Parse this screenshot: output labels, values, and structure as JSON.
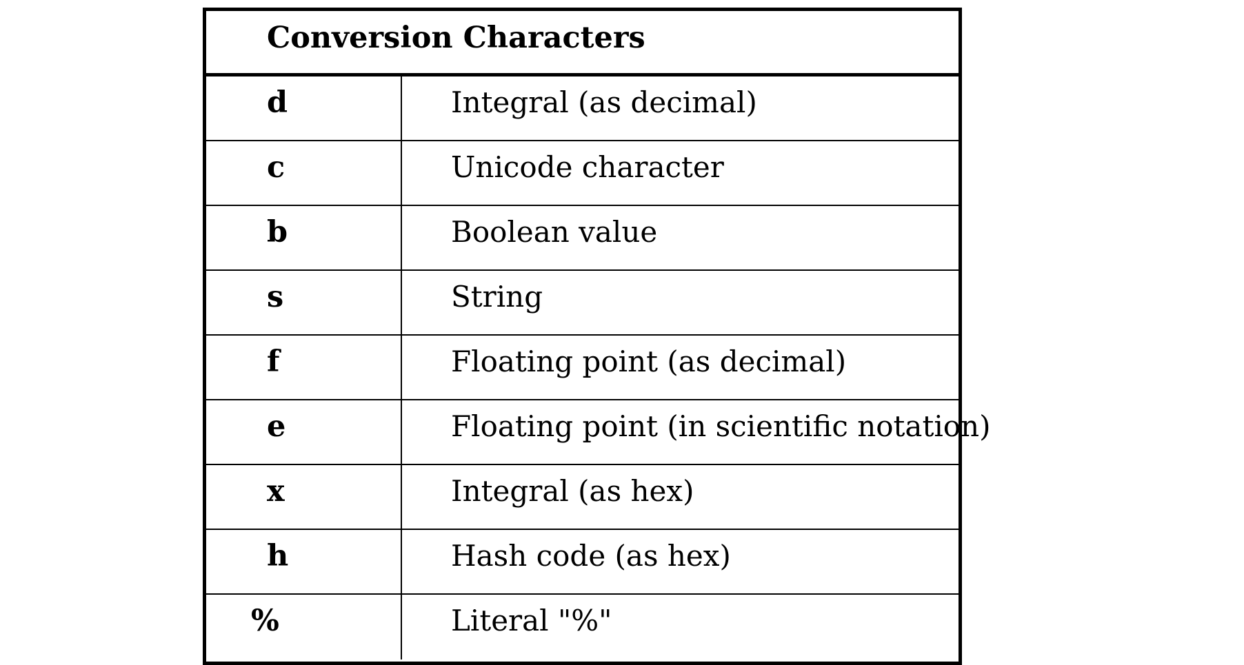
{
  "table": {
    "title": "Conversion Characters",
    "rows": [
      {
        "code": "d",
        "description": "Integral (as decimal)"
      },
      {
        "code": "c",
        "description": "Unicode character"
      },
      {
        "code": "b",
        "description": "Boolean value"
      },
      {
        "code": "s",
        "description": "String"
      },
      {
        "code": "f",
        "description": "Floating point (as decimal)"
      },
      {
        "code": "e",
        "description": "Floating point (in scientific notation)"
      },
      {
        "code": "x",
        "description": "Integral (as hex)"
      },
      {
        "code": "h",
        "description": "Hash code (as hex)"
      },
      {
        "code": "%",
        "description": "Literal \"%\""
      }
    ]
  }
}
